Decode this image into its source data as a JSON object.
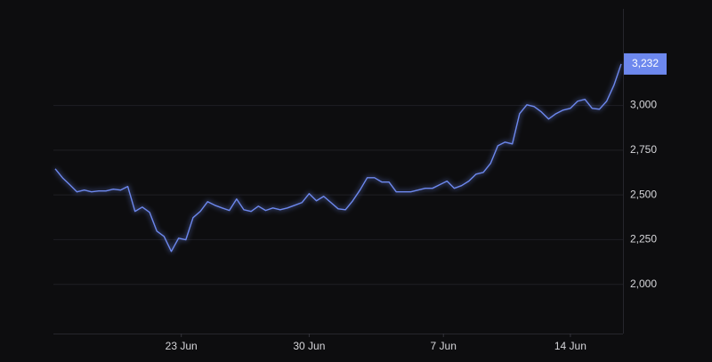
{
  "chart_data": {
    "type": "line",
    "color": "#6d88ee",
    "grid": true,
    "x": [
      0.1,
      0.5,
      0.9,
      1.3,
      1.7,
      2.1,
      2.5,
      2.9,
      3.3,
      3.7,
      4.1,
      4.5,
      4.9,
      5.3,
      5.7,
      6.1,
      6.5,
      6.9,
      7.3,
      7.7,
      8.1,
      8.5,
      8.9,
      9.3,
      9.7,
      10.1,
      10.5,
      10.9,
      11.3,
      11.7,
      12.1,
      12.5,
      12.9,
      13.3,
      13.7,
      14.1,
      14.5,
      14.9,
      15.3,
      15.7,
      16.1,
      16.5,
      16.9,
      17.3,
      17.7,
      18.1,
      18.5,
      18.9,
      19.3,
      19.7,
      20.1,
      20.5,
      20.9,
      21.3,
      21.7,
      22.1,
      22.5,
      22.9,
      23.3,
      23.7,
      24.1,
      24.5,
      24.9,
      25.3,
      25.7,
      26.1,
      26.5,
      26.9,
      27.3,
      27.7,
      28.1,
      28.5,
      28.9,
      29.3,
      29.7,
      30.1,
      30.5,
      30.9,
      31.3
    ],
    "values": [
      2646,
      2596,
      2557,
      2517,
      2527,
      2517,
      2522,
      2522,
      2532,
      2527,
      2547,
      2408,
      2432,
      2403,
      2298,
      2268,
      2184,
      2258,
      2249,
      2373,
      2408,
      2462,
      2442,
      2427,
      2413,
      2477,
      2417,
      2408,
      2437,
      2413,
      2427,
      2417,
      2427,
      2442,
      2457,
      2507,
      2467,
      2492,
      2457,
      2422,
      2417,
      2467,
      2527,
      2596,
      2596,
      2572,
      2572,
      2517,
      2517,
      2517,
      2527,
      2537,
      2537,
      2557,
      2577,
      2537,
      2552,
      2577,
      2616,
      2626,
      2676,
      2775,
      2795,
      2785,
      2954,
      3004,
      2994,
      2964,
      2924,
      2954,
      2974,
      2984,
      3024,
      3034,
      2984,
      2979,
      3024,
      3113,
      3232
    ],
    "value_labels": [
      null,
      null,
      null,
      null,
      null,
      null,
      null,
      null,
      null,
      null,
      null,
      null,
      null,
      null,
      null,
      null,
      null,
      null,
      null,
      null,
      null,
      null,
      null,
      null,
      null,
      null,
      null,
      null,
      null,
      null,
      null,
      null,
      null,
      null,
      null,
      null,
      null,
      null,
      null,
      null,
      null,
      null,
      null,
      null,
      null,
      null,
      null,
      null,
      null,
      null,
      null,
      null,
      null,
      null,
      null,
      null,
      null,
      null,
      null,
      null,
      null,
      null,
      null,
      null,
      null,
      null,
      null,
      null,
      null,
      null,
      null,
      null,
      null,
      null,
      null,
      null,
      null,
      null,
      "3,232"
    ],
    "xlim": [
      0,
      31.4
    ],
    "xticks": [
      {
        "value": 7.05,
        "label": "23 Jun"
      },
      {
        "value": 14.1,
        "label": "30 Jun"
      },
      {
        "value": 21.5,
        "label": "7 Jun"
      },
      {
        "value": 28.5,
        "label": "14 Jun"
      }
    ],
    "ylim": [
      1725,
      3515
    ],
    "yticks": [
      {
        "value": 2000,
        "label": "2,000"
      },
      {
        "value": 2250,
        "label": "2,250"
      },
      {
        "value": 2500,
        "label": "2,500"
      },
      {
        "value": 2750,
        "label": "2,750"
      },
      {
        "value": 3000,
        "label": "3,000"
      }
    ]
  }
}
